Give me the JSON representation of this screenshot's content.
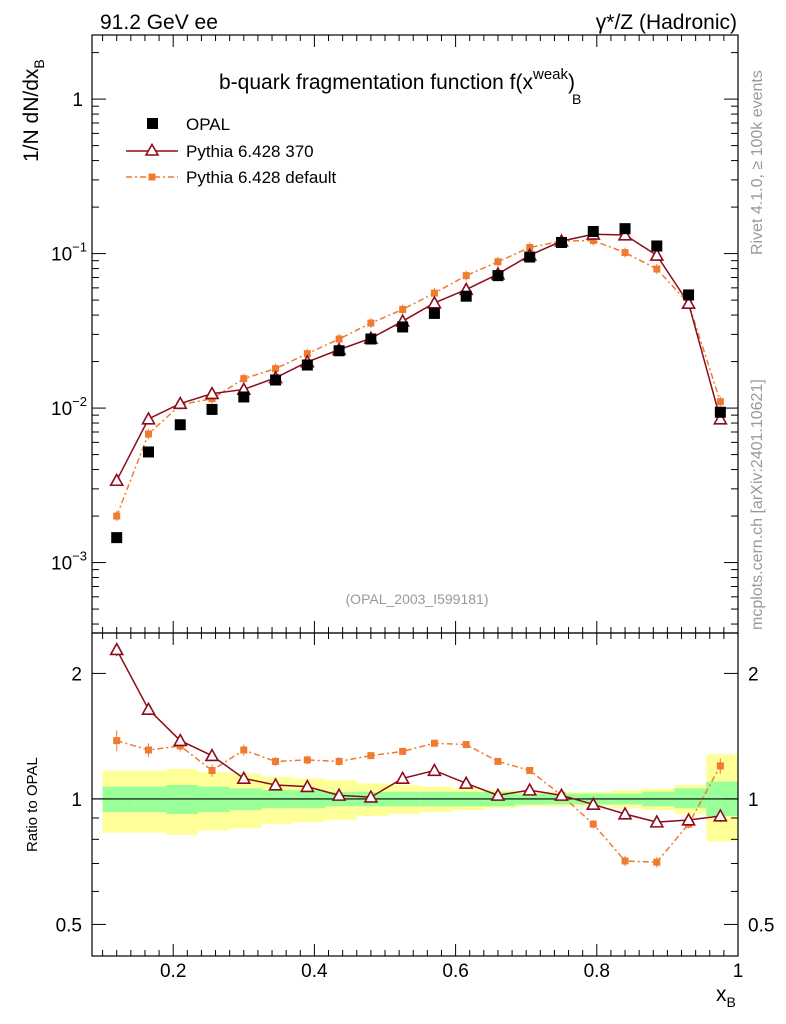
{
  "header": {
    "left": "91.2 GeV ee",
    "right": "γ*/Z (Hadronic)"
  },
  "side_labels": {
    "rivet": "Rivet 4.1.0, ≥ 100k events",
    "mcplots": "mcplots.cern.ch [arXiv:2401.10621]"
  },
  "main_plot": {
    "title": "b-quark fragmentation function f(x",
    "title_sup": "weak",
    "title_sub": "B",
    "title_close": ")",
    "ylabel": "1/N  dN/dx",
    "ylabel_sub": "B",
    "analysis_id": "(OPAL_2003_I599181)"
  },
  "ratio_plot": {
    "ylabel": "Ratio to OPAL"
  },
  "xaxis": {
    "label": "x",
    "label_sub": "B",
    "ticks": [
      "0.2",
      "0.4",
      "0.6",
      "0.8",
      "1"
    ]
  },
  "legend": {
    "entries": [
      "OPAL",
      "Pythia 6.428 370",
      "Pythia 6.428 default"
    ]
  },
  "colors": {
    "opal": "#000000",
    "p370": "#8b0c1c",
    "pdefault": "#f07a2f",
    "band_green": "#99ff99",
    "band_yellow": "#ffff99"
  },
  "chart_data": [
    {
      "type": "scatter",
      "title": "b-quark fragmentation function f(x_B^weak)",
      "xlabel": "x_B",
      "ylabel": "1/N dN/dx_B",
      "yscale": "log",
      "xlim": [
        0.085,
        1.0
      ],
      "ylim": [
        0.00035,
        2.6
      ],
      "ytick_labels": [
        {
          "value": 0.001,
          "base": "10",
          "exp": "−3"
        },
        {
          "value": 0.01,
          "base": "10",
          "exp": "−2"
        },
        {
          "value": 0.1,
          "base": "10",
          "exp": "−1"
        },
        {
          "value": 1,
          "base": "1",
          "exp": ""
        }
      ],
      "x": [
        0.12,
        0.165,
        0.21,
        0.255,
        0.3,
        0.345,
        0.39,
        0.435,
        0.48,
        0.525,
        0.57,
        0.615,
        0.66,
        0.705,
        0.75,
        0.795,
        0.84,
        0.885,
        0.93,
        0.975
      ],
      "series": [
        {
          "name": "OPAL",
          "values": [
            0.00145,
            0.0052,
            0.0078,
            0.0098,
            0.0118,
            0.0152,
            0.019,
            0.0235,
            0.028,
            0.0335,
            0.041,
            0.053,
            0.072,
            0.095,
            0.118,
            0.139,
            0.145,
            0.112,
            0.054,
            0.0094
          ]
        },
        {
          "name": "Pythia 6.428 370",
          "values": [
            0.0034,
            0.0085,
            0.0107,
            0.0124,
            0.0132,
            0.0157,
            0.0199,
            0.0239,
            0.0283,
            0.0365,
            0.0479,
            0.0585,
            0.0737,
            0.0975,
            0.1204,
            0.1334,
            0.1319,
            0.0975,
            0.0476,
            0.0085
          ]
        },
        {
          "name": "Pythia 6.428 default",
          "values": [
            0.002,
            0.0068,
            0.0105,
            0.0115,
            0.0155,
            0.018,
            0.0225,
            0.028,
            0.0355,
            0.0435,
            0.0555,
            0.072,
            0.0885,
            0.1095,
            0.1205,
            0.1215,
            0.1015,
            0.0795,
            0.0475,
            0.011
          ]
        }
      ]
    },
    {
      "type": "line",
      "title": "Ratio to OPAL",
      "xlabel": "x_B",
      "ylabel": "Ratio to OPAL",
      "yscale": "log",
      "xlim": [
        0.085,
        1.0
      ],
      "ylim": [
        0.42,
        2.5
      ],
      "ytick_labels": [
        {
          "value": 0.5,
          "label": "0.5"
        },
        {
          "value": 1,
          "label": "1"
        },
        {
          "value": 2,
          "label": "2"
        }
      ],
      "x": [
        0.12,
        0.165,
        0.21,
        0.255,
        0.3,
        0.345,
        0.39,
        0.435,
        0.48,
        0.525,
        0.57,
        0.615,
        0.66,
        0.705,
        0.75,
        0.795,
        0.84,
        0.885,
        0.93,
        0.975
      ],
      "series": [
        {
          "name": "Pythia 6.428 370",
          "values": [
            2.28,
            1.64,
            1.38,
            1.27,
            1.12,
            1.08,
            1.07,
            1.02,
            1.01,
            1.12,
            1.17,
            1.09,
            1.02,
            1.05,
            1.02,
            0.97,
            0.92,
            0.88,
            0.89,
            0.91
          ],
          "errors": [
            0.08,
            0.05,
            0.04,
            0.03,
            0.02,
            0.02,
            0.02,
            0.02,
            0.02,
            0.02,
            0.02,
            0.02,
            0.02,
            0.02,
            0.02,
            0.02,
            0.02,
            0.02,
            0.02,
            0.03
          ]
        },
        {
          "name": "Pythia 6.428 default",
          "values": [
            1.38,
            1.31,
            1.34,
            1.17,
            1.31,
            1.23,
            1.24,
            1.23,
            1.27,
            1.3,
            1.36,
            1.35,
            1.23,
            1.17,
            1.02,
            0.87,
            0.71,
            0.705,
            0.87,
            1.2
          ],
          "errors": [
            0.08,
            0.05,
            0.04,
            0.04,
            0.04,
            0.03,
            0.03,
            0.03,
            0.02,
            0.02,
            0.02,
            0.02,
            0.02,
            0.02,
            0.02,
            0.02,
            0.02,
            0.02,
            0.02,
            0.05
          ]
        }
      ],
      "bands": {
        "x_edges": [
          0.1,
          0.145,
          0.19,
          0.235,
          0.28,
          0.325,
          0.37,
          0.415,
          0.46,
          0.505,
          0.55,
          0.595,
          0.64,
          0.685,
          0.73,
          0.775,
          0.82,
          0.865,
          0.91,
          0.955,
          1.0
        ],
        "green_lo": [
          0.93,
          0.93,
          0.92,
          0.93,
          0.94,
          0.95,
          0.95,
          0.96,
          0.96,
          0.96,
          0.96,
          0.96,
          0.96,
          0.97,
          0.97,
          0.97,
          0.97,
          0.96,
          0.95,
          0.91
        ],
        "green_hi": [
          1.07,
          1.07,
          1.08,
          1.07,
          1.06,
          1.05,
          1.05,
          1.04,
          1.04,
          1.04,
          1.04,
          1.04,
          1.04,
          1.03,
          1.03,
          1.03,
          1.03,
          1.04,
          1.06,
          1.1
        ],
        "yellow_lo": [
          0.83,
          0.83,
          0.82,
          0.84,
          0.85,
          0.87,
          0.88,
          0.89,
          0.91,
          0.92,
          0.93,
          0.94,
          0.95,
          0.96,
          0.96,
          0.96,
          0.95,
          0.94,
          0.92,
          0.79
        ],
        "yellow_hi": [
          1.17,
          1.17,
          1.18,
          1.16,
          1.15,
          1.13,
          1.12,
          1.11,
          1.09,
          1.08,
          1.07,
          1.06,
          1.05,
          1.04,
          1.04,
          1.04,
          1.05,
          1.06,
          1.08,
          1.28
        ]
      }
    }
  ]
}
